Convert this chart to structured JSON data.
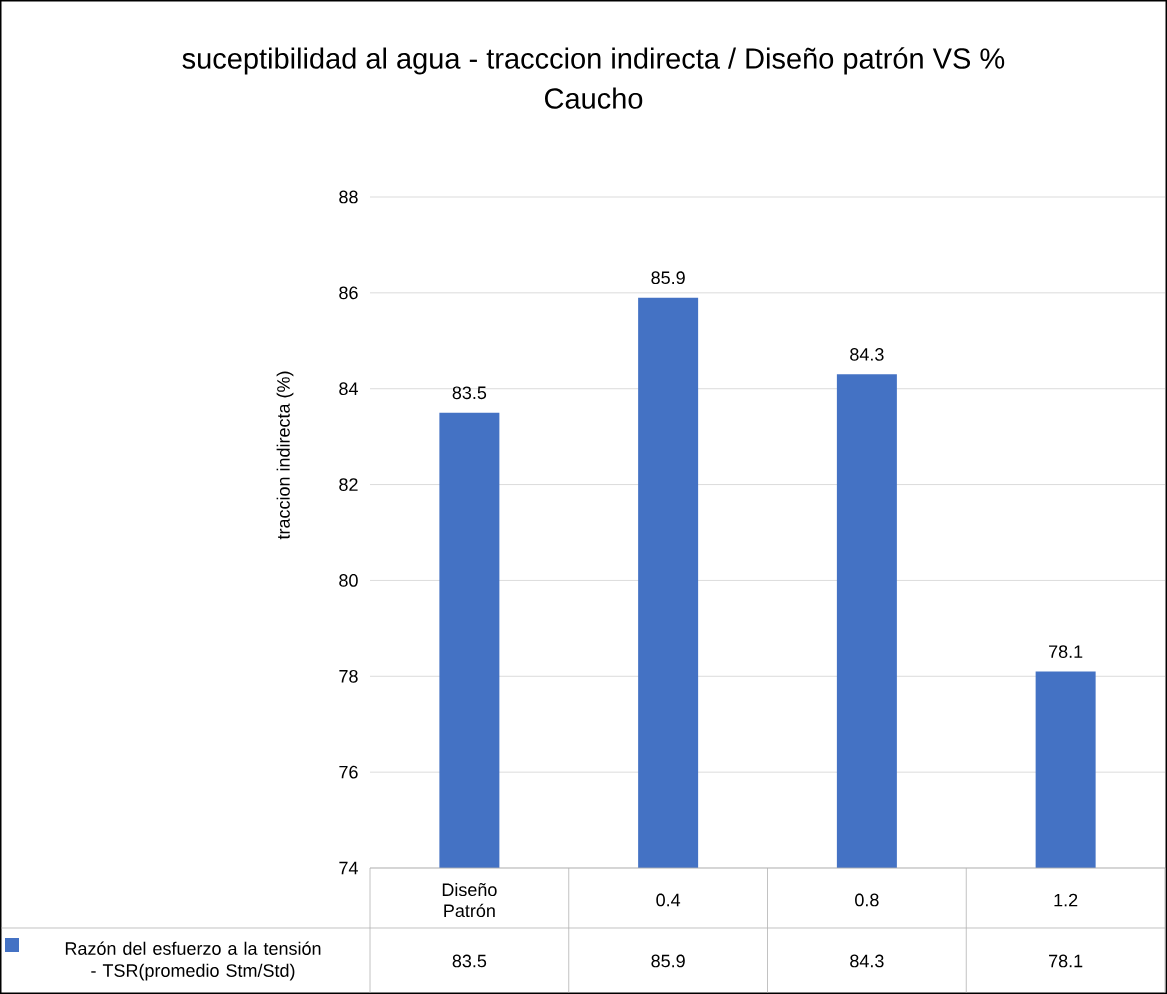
{
  "chart_data": {
    "type": "bar",
    "title": "suceptibilidad al agua - tracccion indirecta / Diseño patrón VS % Caucho",
    "ylabel": "traccion indirecta (%)",
    "categories": [
      "Diseño Patrón",
      "0.4",
      "0.8",
      "1.2"
    ],
    "series": [
      {
        "name": "Razón del esfuerzo a la tensión - TSR(promedio Stm/Std)",
        "color": "#4472c4",
        "values": [
          83.5,
          85.9,
          84.3,
          78.1
        ],
        "value_labels": [
          "83.5",
          "85.9",
          "84.3",
          "78.1"
        ]
      }
    ],
    "ylim": [
      74,
      88
    ],
    "yticks": [
      74,
      76,
      78,
      80,
      82,
      84,
      86,
      88
    ],
    "grid": "y",
    "legend": "bottom"
  }
}
